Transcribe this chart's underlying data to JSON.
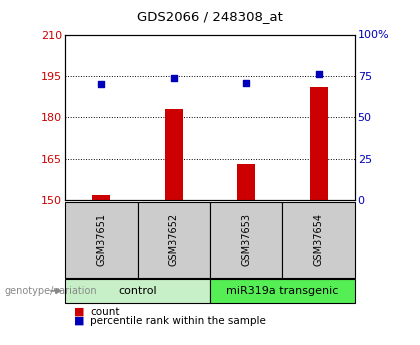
{
  "title": "GDS2066 / 248308_at",
  "samples": [
    "GSM37651",
    "GSM37652",
    "GSM37653",
    "GSM37654"
  ],
  "bar_values": [
    152,
    183,
    163,
    191
  ],
  "dot_pct_values": [
    70,
    74,
    71,
    76
  ],
  "ylim_left": [
    150,
    210
  ],
  "ylim_right": [
    0,
    100
  ],
  "yticks_left": [
    150,
    165,
    180,
    195,
    210
  ],
  "yticks_right": [
    0,
    25,
    50,
    75,
    100
  ],
  "ytick_labels_right": [
    "0",
    "25",
    "50",
    "75",
    "100%"
  ],
  "bar_color": "#cc0000",
  "dot_color": "#0000bb",
  "groups": [
    {
      "label": "control",
      "span": [
        0,
        2
      ],
      "color": "#c8f0c8"
    },
    {
      "label": "miR319a transgenic",
      "span": [
        2,
        4
      ],
      "color": "#55ee55"
    }
  ],
  "legend_count_label": "count",
  "legend_pct_label": "percentile rank within the sample",
  "genotype_label": "genotype/variation",
  "sample_box_color": "#cccccc",
  "bar_width": 0.25
}
